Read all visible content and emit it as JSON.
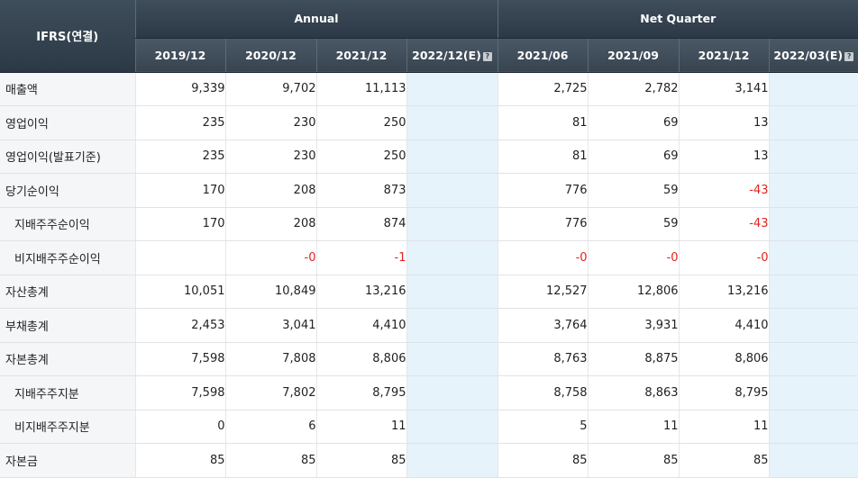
{
  "header": {
    "corner": "IFRS(연결)",
    "annual": "Annual",
    "quarter": "Net Quarter",
    "annual_cols": [
      "2019/12",
      "2020/12",
      "2021/12",
      "2022/12(E)"
    ],
    "quarter_cols": [
      "2021/06",
      "2021/09",
      "2021/12",
      "2022/03(E)"
    ],
    "help_glyph": "?"
  },
  "rows": [
    {
      "label": "매출액",
      "values": [
        "9,339",
        "9,702",
        "11,113",
        "",
        "2,725",
        "2,782",
        "3,141",
        ""
      ]
    },
    {
      "label": "영업이익",
      "values": [
        "235",
        "230",
        "250",
        "",
        "81",
        "69",
        "13",
        ""
      ]
    },
    {
      "label": "영업이익(발표기준)",
      "values": [
        "235",
        "230",
        "250",
        "",
        "81",
        "69",
        "13",
        ""
      ]
    },
    {
      "label": "당기순이익",
      "values": [
        "170",
        "208",
        "873",
        "",
        "776",
        "59",
        "-43",
        ""
      ]
    },
    {
      "label": "지배주주순이익",
      "values": [
        "170",
        "208",
        "874",
        "",
        "776",
        "59",
        "-43",
        ""
      ]
    },
    {
      "label": "비지배주주순이익",
      "values": [
        "",
        "-0",
        "-1",
        "",
        "-0",
        "-0",
        "-0",
        ""
      ]
    },
    {
      "label": "자산총계",
      "values": [
        "10,051",
        "10,849",
        "13,216",
        "",
        "12,527",
        "12,806",
        "13,216",
        ""
      ]
    },
    {
      "label": "부채총계",
      "values": [
        "2,453",
        "3,041",
        "4,410",
        "",
        "3,764",
        "3,931",
        "4,410",
        ""
      ]
    },
    {
      "label": "자본총계",
      "values": [
        "7,598",
        "7,808",
        "8,806",
        "",
        "8,763",
        "8,875",
        "8,806",
        ""
      ]
    },
    {
      "label": "지배주주지분",
      "values": [
        "7,598",
        "7,802",
        "8,795",
        "",
        "8,758",
        "8,863",
        "8,795",
        ""
      ]
    },
    {
      "label": "비지배주주지분",
      "values": [
        "0",
        "6",
        "11",
        "",
        "5",
        "11",
        "11",
        ""
      ]
    },
    {
      "label": "자본금",
      "values": [
        "85",
        "85",
        "85",
        "",
        "85",
        "85",
        "85",
        ""
      ]
    }
  ],
  "colors": {
    "header_bg": "#34414e",
    "label_bg": "#f4f6f8",
    "estimate_bg": "#e6f3fb",
    "negative_text": "#e0231e"
  }
}
